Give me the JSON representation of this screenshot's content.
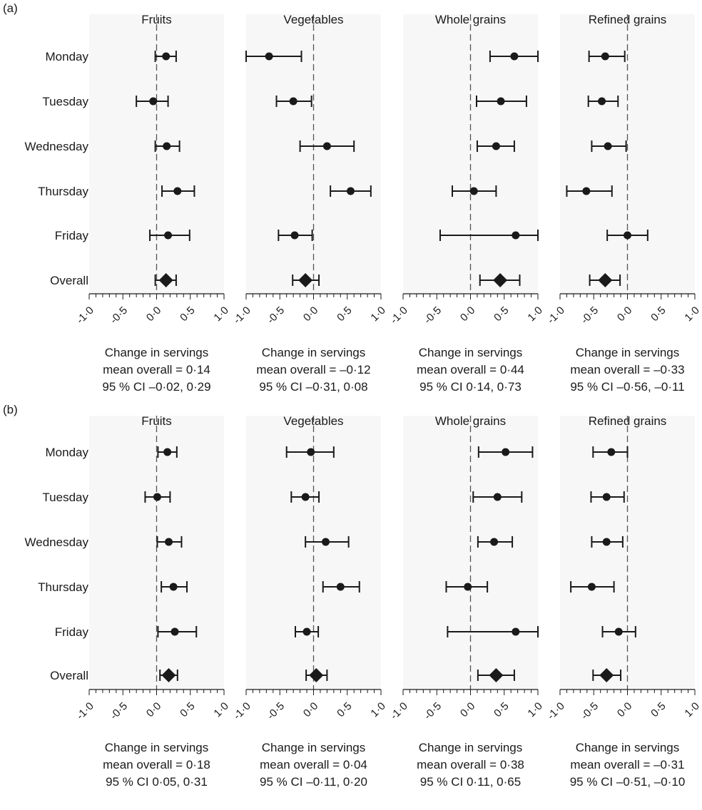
{
  "chart_data": [
    {
      "type": "forest",
      "panel_label": "(a)",
      "row_labels": [
        "Monday",
        "Tuesday",
        "Wednesday",
        "Thursday",
        "Friday",
        "Overall"
      ],
      "xlim": [
        -1.0,
        1.0
      ],
      "tick_labels": [
        "-1·0",
        "-0·5",
        "0·0",
        "0·5",
        "1·0"
      ],
      "reference_line": 0,
      "subplots": [
        {
          "title": "Fruits",
          "points": [
            {
              "est": 0.14,
              "lo": -0.02,
              "hi": 0.29
            },
            {
              "est": -0.05,
              "lo": -0.3,
              "hi": 0.17
            },
            {
              "est": 0.15,
              "lo": -0.02,
              "hi": 0.34
            },
            {
              "est": 0.31,
              "lo": 0.08,
              "hi": 0.56
            },
            {
              "est": 0.17,
              "lo": -0.1,
              "hi": 0.49
            },
            {
              "est": 0.14,
              "lo": -0.02,
              "hi": 0.29,
              "marker": "diamond"
            }
          ],
          "footer": [
            "Change in servings",
            "mean overall = 0·14",
            "95 % CI –0·02, 0·29"
          ]
        },
        {
          "title": "Vegetables",
          "points": [
            {
              "est": -0.66,
              "lo": -1.0,
              "hi": -0.18
            },
            {
              "est": -0.3,
              "lo": -0.55,
              "hi": -0.03
            },
            {
              "est": 0.2,
              "lo": -0.2,
              "hi": 0.6
            },
            {
              "est": 0.55,
              "lo": 0.25,
              "hi": 0.85
            },
            {
              "est": -0.28,
              "lo": -0.52,
              "hi": -0.02
            },
            {
              "est": -0.12,
              "lo": -0.31,
              "hi": 0.08,
              "marker": "diamond"
            }
          ],
          "footer": [
            "Change in servings",
            "mean overall = –0·12",
            "95 % CI –0·31, 0·08"
          ]
        },
        {
          "title": "Whole grains",
          "points": [
            {
              "est": 0.65,
              "lo": 0.29,
              "hi": 1.0
            },
            {
              "est": 0.45,
              "lo": 0.09,
              "hi": 0.83
            },
            {
              "est": 0.38,
              "lo": 0.1,
              "hi": 0.65
            },
            {
              "est": 0.05,
              "lo": -0.27,
              "hi": 0.38
            },
            {
              "est": 0.67,
              "lo": -0.45,
              "hi": 1.0
            },
            {
              "est": 0.44,
              "lo": 0.14,
              "hi": 0.73,
              "marker": "diamond"
            }
          ],
          "footer": [
            "Change in servings",
            "mean overall = 0·44",
            "95 % CI 0·14, 0·73"
          ]
        },
        {
          "title": "Refined grains",
          "points": [
            {
              "est": -0.33,
              "lo": -0.57,
              "hi": -0.04
            },
            {
              "est": -0.38,
              "lo": -0.58,
              "hi": -0.14
            },
            {
              "est": -0.29,
              "lo": -0.53,
              "hi": -0.02
            },
            {
              "est": -0.61,
              "lo": -0.9,
              "hi": -0.23
            },
            {
              "est": 0.0,
              "lo": -0.3,
              "hi": 0.3
            },
            {
              "est": -0.33,
              "lo": -0.56,
              "hi": -0.11,
              "marker": "diamond"
            }
          ],
          "footer": [
            "Change in servings",
            "mean overall = –0·33",
            "95 % CI –0·56, –0·11"
          ]
        }
      ]
    },
    {
      "type": "forest",
      "panel_label": "(b)",
      "row_labels": [
        "Monday",
        "Tuesday",
        "Wednesday",
        "Thursday",
        "Friday",
        "Overall"
      ],
      "xlim": [
        -1.0,
        1.0
      ],
      "tick_labels": [
        "-1·0",
        "-0·5",
        "0·0",
        "0·5",
        "1·0"
      ],
      "reference_line": 0,
      "subplots": [
        {
          "title": "Fruits",
          "points": [
            {
              "est": 0.16,
              "lo": 0.02,
              "hi": 0.3
            },
            {
              "est": 0.01,
              "lo": -0.17,
              "hi": 0.2
            },
            {
              "est": 0.18,
              "lo": 0.01,
              "hi": 0.37
            },
            {
              "est": 0.25,
              "lo": 0.07,
              "hi": 0.45
            },
            {
              "est": 0.27,
              "lo": 0.02,
              "hi": 0.59
            },
            {
              "est": 0.18,
              "lo": 0.05,
              "hi": 0.31,
              "marker": "diamond"
            }
          ],
          "footer": [
            "Change in servings",
            "mean overall = 0·18",
            "95 % CI 0·05, 0·31"
          ]
        },
        {
          "title": "Vegetables",
          "points": [
            {
              "est": -0.04,
              "lo": -0.4,
              "hi": 0.3
            },
            {
              "est": -0.12,
              "lo": -0.33,
              "hi": 0.08
            },
            {
              "est": 0.18,
              "lo": -0.12,
              "hi": 0.52
            },
            {
              "est": 0.4,
              "lo": 0.14,
              "hi": 0.68
            },
            {
              "est": -0.1,
              "lo": -0.27,
              "hi": 0.07
            },
            {
              "est": 0.04,
              "lo": -0.11,
              "hi": 0.2,
              "marker": "diamond"
            }
          ],
          "footer": [
            "Change in servings",
            "mean overall = 0·04",
            "95 % CI –0·11, 0·20"
          ]
        },
        {
          "title": "Whole grains",
          "points": [
            {
              "est": 0.52,
              "lo": 0.12,
              "hi": 0.92
            },
            {
              "est": 0.4,
              "lo": 0.04,
              "hi": 0.76
            },
            {
              "est": 0.35,
              "lo": 0.11,
              "hi": 0.62
            },
            {
              "est": -0.04,
              "lo": -0.36,
              "hi": 0.25
            },
            {
              "est": 0.67,
              "lo": -0.34,
              "hi": 1.0
            },
            {
              "est": 0.38,
              "lo": 0.11,
              "hi": 0.65,
              "marker": "diamond"
            }
          ],
          "footer": [
            "Change in servings",
            "mean overall = 0·38",
            "95 % CI 0·11, 0·65"
          ]
        },
        {
          "title": "Refined grains",
          "points": [
            {
              "est": -0.24,
              "lo": -0.51,
              "hi": 0.0
            },
            {
              "est": -0.31,
              "lo": -0.54,
              "hi": -0.05
            },
            {
              "est": -0.31,
              "lo": -0.53,
              "hi": -0.07
            },
            {
              "est": -0.53,
              "lo": -0.84,
              "hi": -0.2
            },
            {
              "est": -0.13,
              "lo": -0.37,
              "hi": 0.12
            },
            {
              "est": -0.31,
              "lo": -0.51,
              "hi": -0.1,
              "marker": "diamond"
            }
          ],
          "footer": [
            "Change in servings",
            "mean overall = –0·31",
            "95 % CI –0·51, –0·10"
          ]
        }
      ]
    }
  ]
}
